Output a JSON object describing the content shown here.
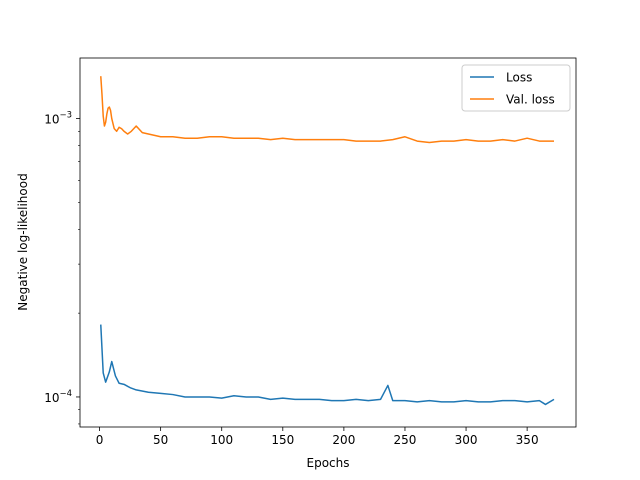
{
  "chart_data": {
    "type": "line",
    "title": "",
    "xlabel": "Epochs",
    "ylabel": "Negative log-likelihood",
    "yscale": "log",
    "xlim": [
      -16,
      390
    ],
    "ylim": [
      7.8e-05,
      0.00165
    ],
    "xticks": [
      0,
      50,
      100,
      150,
      200,
      250,
      300,
      350
    ],
    "xtick_labels": [
      "0",
      "50",
      "100",
      "150",
      "200",
      "250",
      "300",
      "350"
    ],
    "yticks": [
      0.0001,
      0.001
    ],
    "ytick_labels": [
      {
        "base": "10",
        "exp": "−4"
      },
      {
        "base": "10",
        "exp": "−3"
      }
    ],
    "legend": {
      "placement": "top-right"
    },
    "grid": false,
    "series": [
      {
        "name": "Loss",
        "color": "#1f77b4",
        "x": [
          1,
          3,
          5,
          8,
          10,
          13,
          16,
          20,
          25,
          30,
          40,
          50,
          60,
          70,
          80,
          90,
          100,
          110,
          120,
          130,
          140,
          150,
          160,
          170,
          180,
          190,
          200,
          210,
          220,
          230,
          236,
          240,
          250,
          260,
          270,
          280,
          290,
          300,
          310,
          320,
          330,
          340,
          350,
          360,
          365,
          372
        ],
        "y": [
          0.000182,
          0.000122,
          0.000113,
          0.000123,
          0.000134,
          0.000119,
          0.000112,
          0.000111,
          0.000108,
          0.000106,
          0.000104,
          0.000103,
          0.000102,
          0.0001,
          0.0001,
          0.0001,
          9.9e-05,
          0.000101,
          0.0001,
          0.0001,
          9.8e-05,
          9.9e-05,
          9.8e-05,
          9.8e-05,
          9.8e-05,
          9.7e-05,
          9.7e-05,
          9.8e-05,
          9.7e-05,
          9.8e-05,
          0.00011,
          9.7e-05,
          9.7e-05,
          9.6e-05,
          9.7e-05,
          9.6e-05,
          9.6e-05,
          9.7e-05,
          9.6e-05,
          9.6e-05,
          9.7e-05,
          9.7e-05,
          9.6e-05,
          9.7e-05,
          9.4e-05,
          9.8e-05
        ]
      },
      {
        "name": "Val. loss",
        "color": "#ff7f0e",
        "x": [
          1,
          2,
          3,
          4,
          5,
          6,
          7,
          8,
          9,
          10,
          12,
          14,
          16,
          18,
          20,
          23,
          26,
          30,
          35,
          40,
          50,
          60,
          70,
          80,
          90,
          100,
          110,
          120,
          130,
          140,
          150,
          160,
          170,
          180,
          190,
          200,
          210,
          220,
          230,
          240,
          250,
          260,
          270,
          280,
          290,
          300,
          310,
          320,
          330,
          340,
          350,
          360,
          372
        ],
        "y": [
          0.00142,
          0.00122,
          0.00102,
          0.00094,
          0.00097,
          0.00104,
          0.00109,
          0.0011,
          0.00107,
          0.001,
          0.00092,
          0.0009,
          0.00093,
          0.00092,
          0.0009,
          0.00088,
          0.0009,
          0.00094,
          0.00089,
          0.00088,
          0.00086,
          0.00086,
          0.00085,
          0.00085,
          0.00086,
          0.00086,
          0.00085,
          0.00085,
          0.00085,
          0.00084,
          0.00085,
          0.00084,
          0.00084,
          0.00084,
          0.00084,
          0.00084,
          0.00083,
          0.00083,
          0.00083,
          0.00084,
          0.00086,
          0.00083,
          0.00082,
          0.00083,
          0.00083,
          0.00084,
          0.00083,
          0.00083,
          0.00084,
          0.00083,
          0.00085,
          0.00083,
          0.00083
        ]
      }
    ]
  }
}
